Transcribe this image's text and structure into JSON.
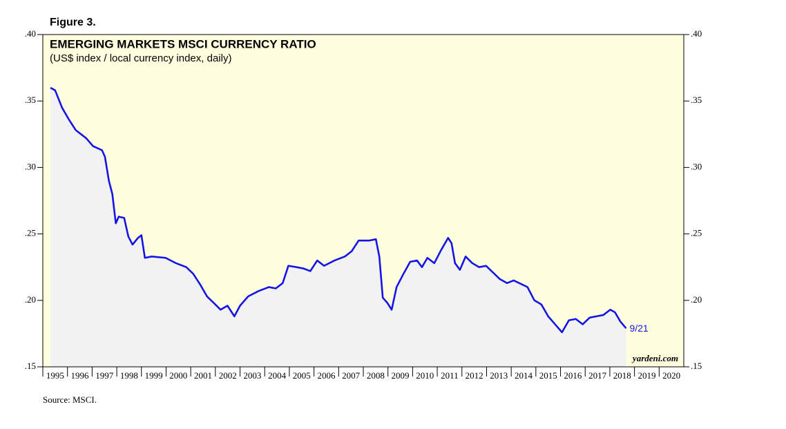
{
  "figure_label": "Figure 3.",
  "source": "Source: MSCI.",
  "chart_data": {
    "type": "line",
    "title": "EMERGING MARKETS MSCI CURRENCY RATIO",
    "subtitle": "(US$ index / local currency index, daily)",
    "annotation": "9/21",
    "watermark": "yardeni.com",
    "x": [
      1995.31,
      1995.5,
      1995.78,
      1996.06,
      1996.34,
      1996.76,
      1997.04,
      1997.4,
      1997.52,
      1997.68,
      1997.82,
      1997.96,
      1998.08,
      1998.3,
      1998.47,
      1998.64,
      1998.86,
      1999.0,
      1999.14,
      1999.42,
      1999.98,
      2000.4,
      2000.82,
      2001.1,
      2001.38,
      2001.66,
      2001.94,
      2002.21,
      2002.49,
      2002.77,
      2003.0,
      2003.33,
      2003.75,
      2004.17,
      2004.45,
      2004.73,
      2004.96,
      2005.29,
      2005.57,
      2005.85,
      2006.13,
      2006.41,
      2006.83,
      2007.25,
      2007.53,
      2007.81,
      2008.23,
      2008.51,
      2008.65,
      2008.79,
      2008.98,
      2009.15,
      2009.35,
      2009.63,
      2009.9,
      2010.18,
      2010.38,
      2010.6,
      2010.88,
      2011.16,
      2011.44,
      2011.58,
      2011.72,
      2011.92,
      2012.15,
      2012.42,
      2012.7,
      2012.98,
      2013.26,
      2013.54,
      2013.83,
      2014.1,
      2014.66,
      2014.94,
      2015.22,
      2015.5,
      2015.78,
      2016.06,
      2016.34,
      2016.62,
      2016.9,
      2017.18,
      2017.46,
      2017.74,
      2018.02,
      2018.21,
      2018.43,
      2018.66
    ],
    "series": [
      {
        "name": "Emerging Markets MSCI Currency Ratio",
        "color": "#1414e6",
        "values": [
          0.36,
          0.358,
          0.345,
          0.336,
          0.328,
          0.322,
          0.316,
          0.313,
          0.308,
          0.29,
          0.28,
          0.258,
          0.263,
          0.262,
          0.248,
          0.242,
          0.247,
          0.249,
          0.232,
          0.233,
          0.232,
          0.228,
          0.225,
          0.22,
          0.212,
          0.203,
          0.198,
          0.193,
          0.196,
          0.188,
          0.196,
          0.203,
          0.207,
          0.21,
          0.209,
          0.213,
          0.226,
          0.225,
          0.224,
          0.222,
          0.23,
          0.226,
          0.23,
          0.233,
          0.237,
          0.245,
          0.245,
          0.246,
          0.233,
          0.202,
          0.198,
          0.193,
          0.21,
          0.22,
          0.229,
          0.23,
          0.225,
          0.232,
          0.228,
          0.238,
          0.247,
          0.243,
          0.228,
          0.223,
          0.233,
          0.228,
          0.225,
          0.226,
          0.221,
          0.216,
          0.213,
          0.215,
          0.21,
          0.2,
          0.197,
          0.188,
          0.182,
          0.176,
          0.185,
          0.186,
          0.182,
          0.187,
          0.188,
          0.189,
          0.193,
          0.191,
          0.184,
          0.179
        ]
      }
    ],
    "xlim": [
      1995,
      2021
    ],
    "xticks": [
      1995,
      1996,
      1997,
      1998,
      1999,
      2000,
      2001,
      2002,
      2003,
      2004,
      2005,
      2006,
      2007,
      2008,
      2009,
      2010,
      2011,
      2012,
      2013,
      2014,
      2015,
      2016,
      2017,
      2018,
      2019,
      2020
    ],
    "ylim": [
      0.15,
      0.4
    ],
    "yticks": [
      {
        "value": 0.15,
        "label": ".15"
      },
      {
        "value": 0.2,
        "label": ".20"
      },
      {
        "value": 0.25,
        "label": ".25"
      },
      {
        "value": 0.3,
        "label": ".30"
      },
      {
        "value": 0.35,
        "label": ".35"
      },
      {
        "value": 0.4,
        "label": ".40"
      }
    ],
    "y2lim": [
      0.15,
      0.4
    ],
    "y2ticks": [
      {
        "value": 0.15,
        "label": ".15"
      },
      {
        "value": 0.2,
        "label": ".20"
      },
      {
        "value": 0.25,
        "label": ".25"
      },
      {
        "value": 0.3,
        "label": ".30"
      },
      {
        "value": 0.35,
        "label": ".35"
      },
      {
        "value": 0.4,
        "label": ".40"
      }
    ],
    "background": "#ffffe0",
    "area_color": "#f2f2f2"
  }
}
